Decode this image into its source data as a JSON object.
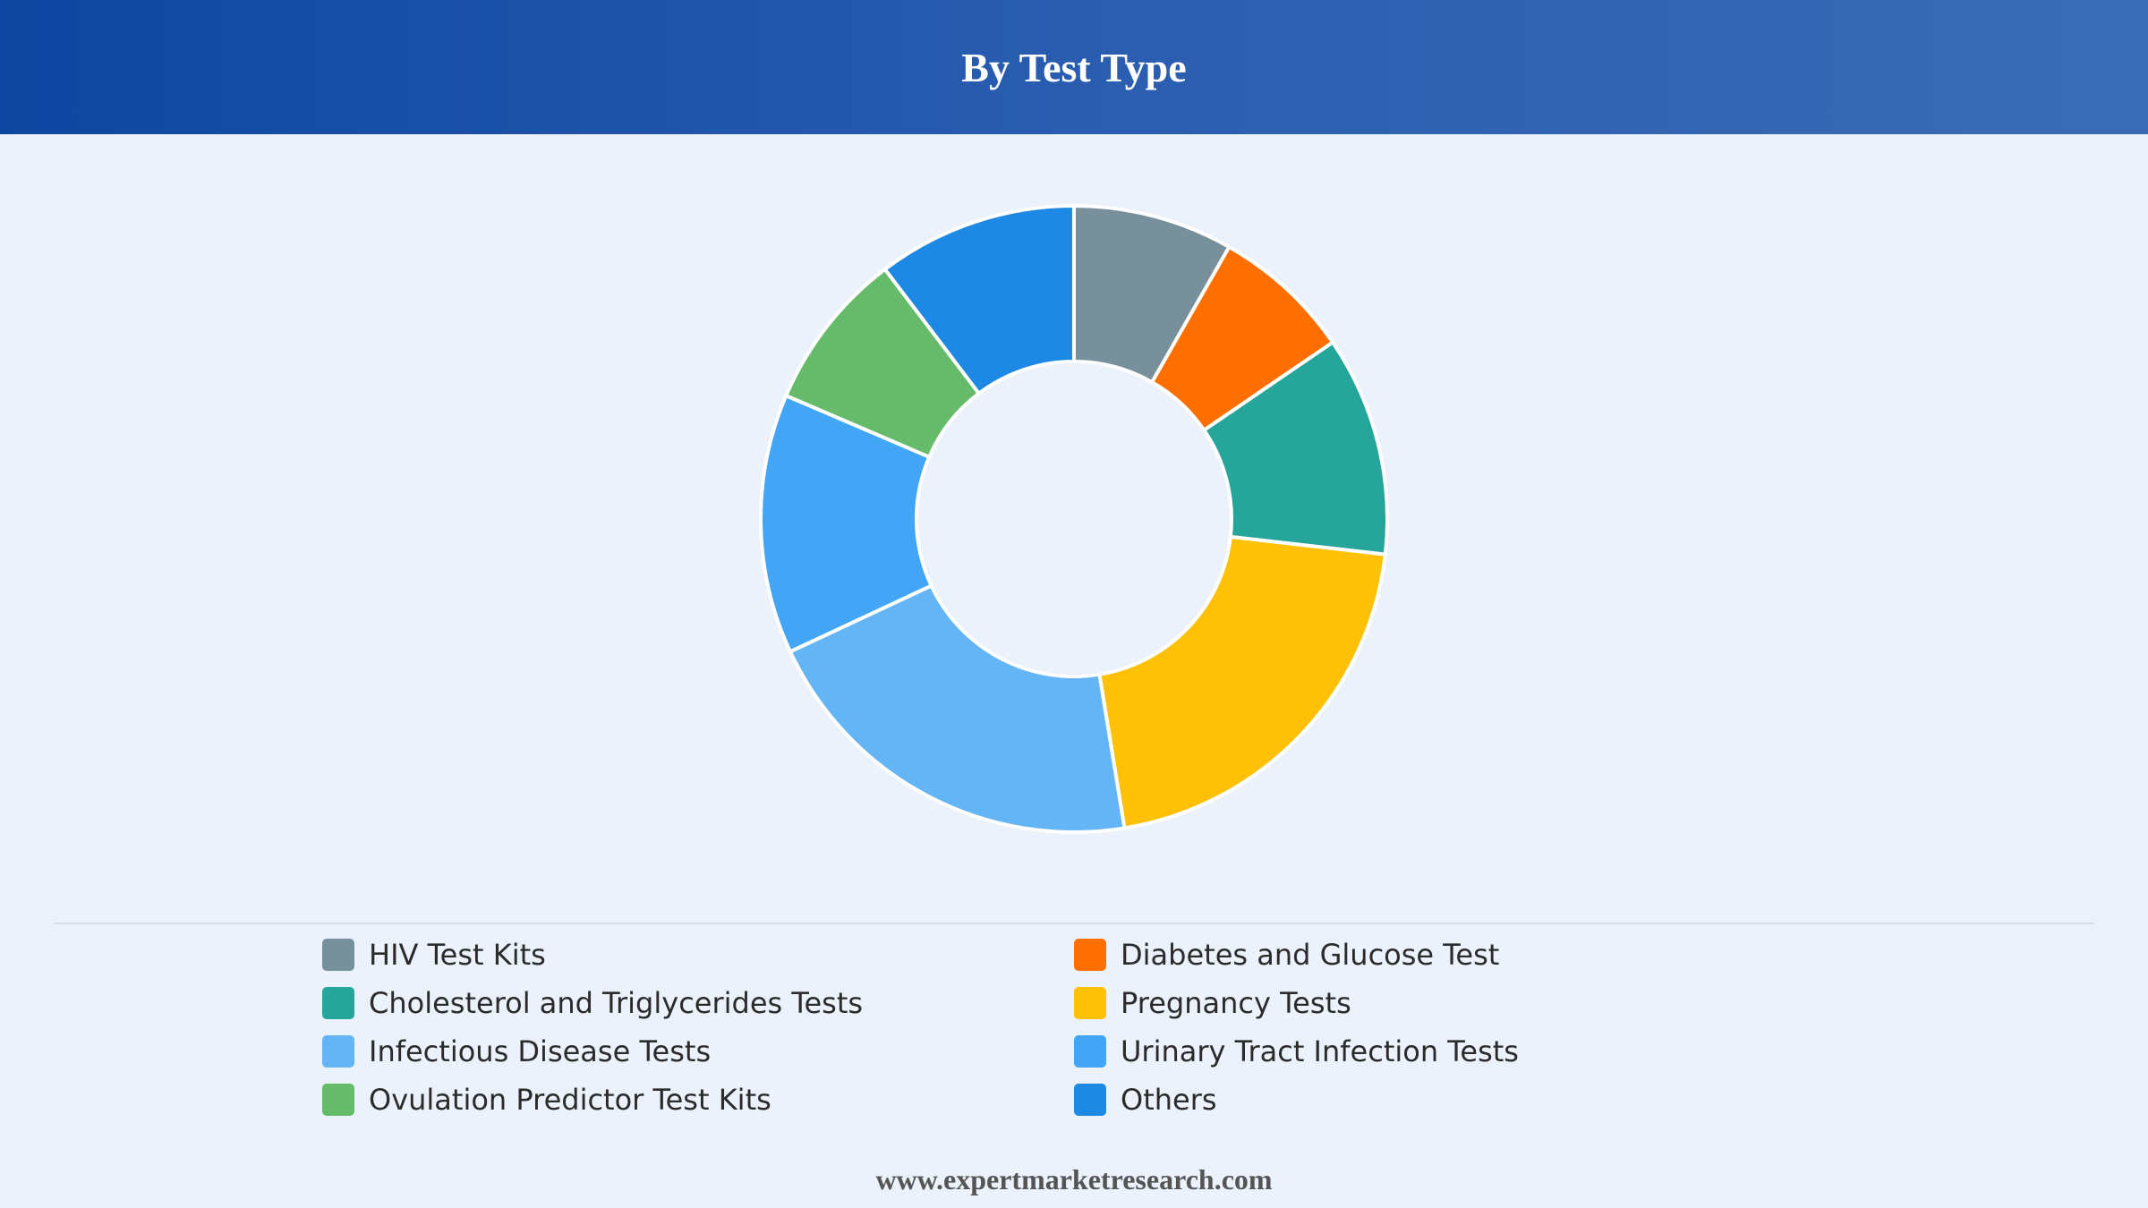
{
  "header": {
    "title": "By Test Type"
  },
  "chart_data": {
    "type": "pie",
    "variant": "donut",
    "title": "By Test Type",
    "categories": [
      "HIV Test Kits",
      "Diabetes and Glucose Test",
      "Cholesterol and Triglycerides Tests",
      "Pregnancy Tests",
      "Infectious Disease Tests",
      "Urinary Tract Infection Tests",
      "Ovulation Predictor Test Kits",
      "Others"
    ],
    "values": [
      8,
      7,
      11,
      20,
      20,
      13,
      8,
      10
    ],
    "colors": [
      "#78909c",
      "#ff6f00",
      "#26a69a",
      "#ffc107",
      "#64b5f6",
      "#42a5f5",
      "#66bb6a",
      "#1e88e5"
    ],
    "legend_position": "bottom"
  },
  "footer": {
    "text": "www.expertmarketresearch.com"
  }
}
